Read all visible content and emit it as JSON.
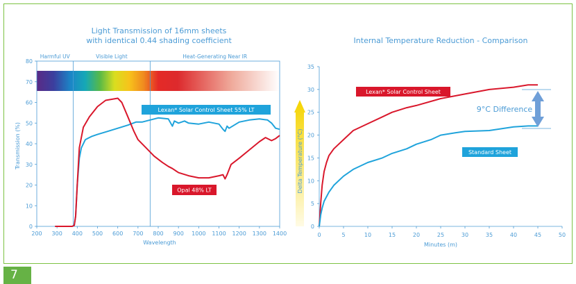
{
  "page_number": "7",
  "colors": {
    "frame": "#7cc242",
    "page_tab": "#66b245",
    "axis_text": "#4b9bd5",
    "red": "#d9172b",
    "blue": "#1fa3db",
    "arrow": "#6f9fd8"
  },
  "chart_data": [
    {
      "type": "line",
      "title_line1": "Light Transmission of 16mm sheets",
      "title_line2": "with identical 0.44 shading coefficient",
      "xlabel": "Wavelength",
      "ylabel": "Transmission (%)",
      "xlim": [
        200,
        1400
      ],
      "ylim": [
        0,
        80
      ],
      "xticks": [
        200,
        300,
        400,
        500,
        600,
        700,
        800,
        900,
        1000,
        1100,
        1200,
        1300,
        1400
      ],
      "yticks": [
        0,
        10,
        20,
        30,
        40,
        50,
        60,
        70,
        80
      ],
      "regions": [
        {
          "label": "Harmful UV",
          "from": 200,
          "to": 380
        },
        {
          "label": "Visible Light",
          "from": 380,
          "to": 760
        },
        {
          "label": "Heat-Generating Near IR",
          "from": 760,
          "to": 1400
        }
      ],
      "spectrum_band": [
        70,
        80
      ],
      "series": [
        {
          "name": "Lexan* Solar Control Sheet 55% LT",
          "color": "#1fa3db",
          "x": [
            290,
            375,
            385,
            392,
            400,
            410,
            420,
            440,
            470,
            500,
            550,
            600,
            650,
            690,
            720,
            740,
            760,
            800,
            850,
            870,
            880,
            900,
            930,
            950,
            1000,
            1050,
            1100,
            1120,
            1130,
            1140,
            1150,
            1200,
            1250,
            1300,
            1340,
            1360,
            1380,
            1400
          ],
          "y": [
            0,
            0,
            0.5,
            5,
            20,
            33,
            38,
            42,
            43.5,
            44.5,
            46,
            47.5,
            49,
            50.5,
            50.5,
            51,
            51.5,
            52.5,
            52,
            48.5,
            51,
            50,
            51,
            50,
            49.5,
            50.5,
            49.5,
            47,
            46,
            48.5,
            47.5,
            50.5,
            51.5,
            52,
            51.5,
            50,
            47.5,
            47
          ]
        },
        {
          "name": "Opal 48% LT",
          "color": "#d9172b",
          "x": [
            290,
            375,
            385,
            392,
            400,
            410,
            430,
            460,
            500,
            540,
            570,
            600,
            620,
            650,
            680,
            700,
            740,
            780,
            820,
            850,
            870,
            900,
            950,
            1000,
            1050,
            1100,
            1120,
            1130,
            1140,
            1160,
            1200,
            1250,
            1300,
            1330,
            1360,
            1380,
            1400
          ],
          "y": [
            0,
            0,
            0.5,
            5,
            20,
            38,
            48,
            53,
            58,
            61,
            61.5,
            62,
            60,
            53,
            46,
            42,
            38,
            34,
            31,
            29,
            28,
            26,
            24.5,
            23.5,
            23.5,
            24.5,
            25,
            23,
            25,
            30,
            33,
            37,
            41,
            43,
            41.5,
            42.5,
            44
          ]
        }
      ]
    },
    {
      "type": "line",
      "title": "Internal Temperature Reduction - Comparison",
      "xlabel": "Minutes (m)",
      "ylabel": "Delta Temperature (°C)",
      "xlim": [
        0,
        50
      ],
      "ylim": [
        0,
        35
      ],
      "xticks": [
        0,
        5,
        10,
        15,
        20,
        25,
        30,
        35,
        40,
        45,
        50
      ],
      "yticks": [
        0,
        5,
        10,
        15,
        20,
        25,
        30,
        35
      ],
      "annotation": "9°C Difference",
      "series": [
        {
          "name": "Lexan* Solar Control Sheet",
          "color": "#d9172b",
          "x": [
            0,
            0.3,
            0.6,
            1,
            1.5,
            2,
            3,
            4,
            5,
            7,
            10,
            13,
            15,
            18,
            20,
            25,
            30,
            35,
            40,
            43,
            45
          ],
          "y": [
            0,
            5,
            9,
            12,
            14,
            15.5,
            17,
            18,
            19,
            21,
            22.5,
            24,
            25,
            26,
            26.5,
            28,
            29,
            30,
            30.5,
            31,
            31
          ]
        },
        {
          "name": "Standard Sheet",
          "color": "#1fa3db",
          "x": [
            0,
            0.3,
            0.6,
            1,
            2,
            3,
            5,
            7,
            10,
            13,
            15,
            18,
            20,
            23,
            25,
            28,
            30,
            35,
            40,
            43,
            45
          ],
          "y": [
            0,
            2.5,
            4,
            5.5,
            7.5,
            9,
            11,
            12.5,
            14,
            15,
            16,
            17,
            18,
            19,
            20,
            20.5,
            20.8,
            21,
            21.8,
            22,
            22
          ]
        }
      ]
    }
  ]
}
